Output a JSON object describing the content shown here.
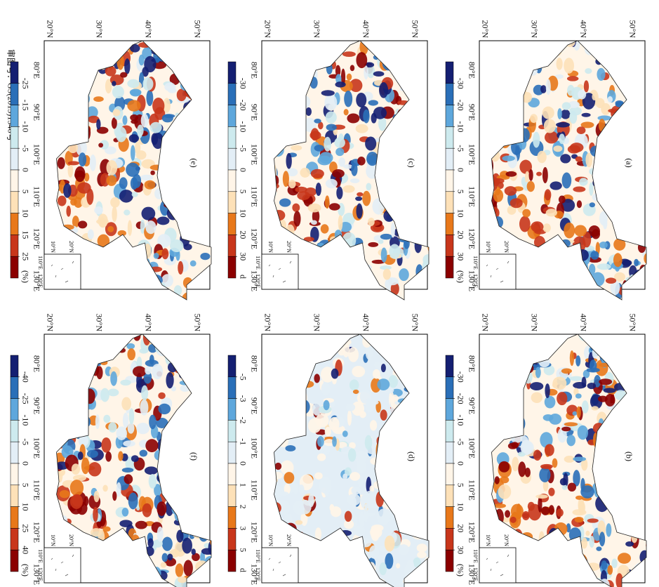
{
  "panels": [
    {
      "label": "(a)",
      "ticks": [
        -30,
        -20,
        -10,
        -5,
        0,
        5,
        10,
        20,
        30
      ],
      "unit": "(%)"
    },
    {
      "label": "(b)",
      "ticks": [
        -30,
        -20,
        -10,
        -5,
        0,
        5,
        10,
        20,
        30
      ],
      "unit": "(%)"
    },
    {
      "label": "(c)",
      "ticks": [
        -30,
        -20,
        -10,
        -5,
        0,
        5,
        10,
        20,
        30
      ],
      "unit": "d"
    },
    {
      "label": "(d)",
      "ticks": [
        -5,
        -3,
        -2,
        -1,
        0,
        1,
        2,
        3,
        5
      ],
      "unit": "d"
    },
    {
      "label": "(e)",
      "ticks": [
        -25,
        -15,
        -10,
        -5,
        0,
        5,
        10,
        15,
        25
      ],
      "unit": "(%)"
    },
    {
      "label": "(f)",
      "ticks": [
        -40,
        -25,
        -10,
        -5,
        0,
        5,
        10,
        25,
        40
      ],
      "unit": "(%)"
    }
  ],
  "colors": [
    "#8b0000",
    "#c8361b",
    "#e8781a",
    "#fde1b8",
    "#fff5e8",
    "#e3eef6",
    "#cdeaee",
    "#5ea7dc",
    "#2a6fb8",
    "#141f72"
  ],
  "lon_labels": [
    "80°E",
    "90°E",
    "100°E",
    "110°E",
    "120°E",
    "130°E"
  ],
  "lat_labels": [
    "20°N",
    "30°N",
    "40°N",
    "50°N"
  ],
  "inset": {
    "lon_labels": [
      "110°E",
      "120°E"
    ],
    "lat_labels": [
      "10°N",
      "20°N"
    ]
  },
  "approval": "审图号：GS(2013)1546号"
}
